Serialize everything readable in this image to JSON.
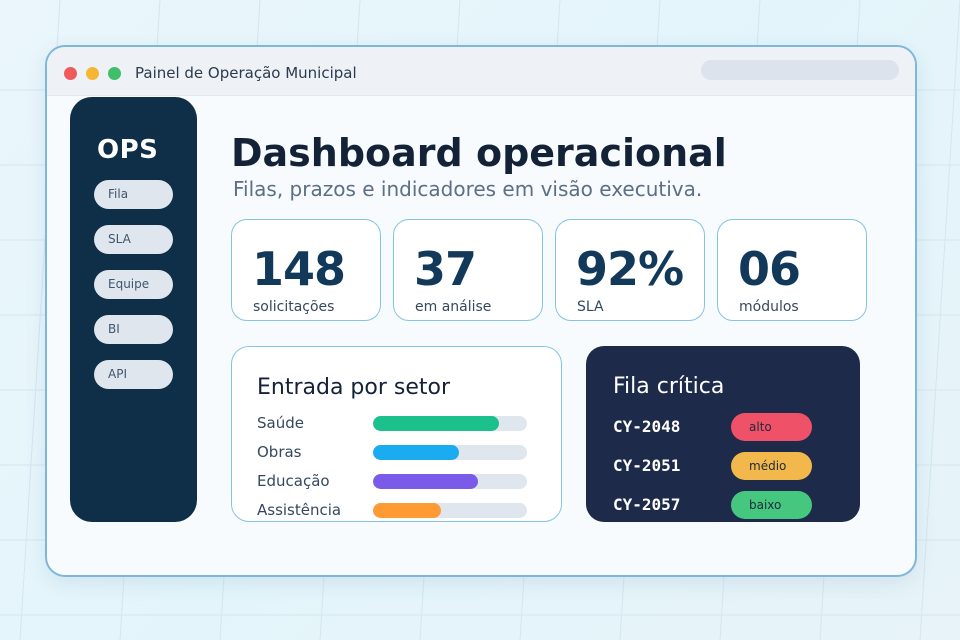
{
  "window": {
    "title": "Painel de Operação Municipal"
  },
  "sidebar": {
    "brand": "OPS",
    "items": [
      {
        "label": "Fila"
      },
      {
        "label": "SLA"
      },
      {
        "label": "Equipe"
      },
      {
        "label": "BI"
      },
      {
        "label": "API"
      }
    ]
  },
  "header": {
    "title": "Dashboard operacional",
    "subtitle": "Filas, prazos e indicadores em visão executiva."
  },
  "kpis": [
    {
      "value": "148",
      "label": "solicitações"
    },
    {
      "value": "37",
      "label": "em análise"
    },
    {
      "value": "92%",
      "label": "SLA"
    },
    {
      "value": "06",
      "label": "módulos"
    }
  ],
  "sectors": {
    "title": "Entrada por setor",
    "items": [
      {
        "label": "Saúde",
        "fraction": 0.82,
        "color": "#1cc08a"
      },
      {
        "label": "Obras",
        "fraction": 0.56,
        "color": "#1aabf0"
      },
      {
        "label": "Educação",
        "fraction": 0.68,
        "color": "#7a5ae8"
      },
      {
        "label": "Assistência",
        "fraction": 0.44,
        "color": "#ff9a35"
      }
    ]
  },
  "queue": {
    "title": "Fila crítica",
    "items": [
      {
        "id": "CY-2048",
        "priority": "alto",
        "color": "#ef5268"
      },
      {
        "id": "CY-2051",
        "priority": "médio",
        "color": "#f2b84b"
      },
      {
        "id": "CY-2057",
        "priority": "baixo",
        "color": "#45c77f"
      }
    ]
  },
  "colors": {
    "sidebar_bg": "#0f2e47",
    "queue_bg": "#1e2a4a",
    "kpi_border": "#84c4e3"
  }
}
